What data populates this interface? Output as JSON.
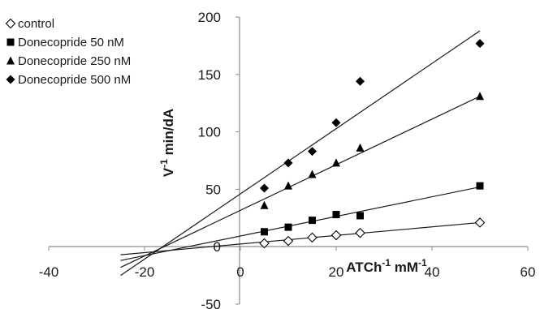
{
  "chart_data": {
    "type": "scatter",
    "title": "",
    "xlabel": {
      "base": "ATCh",
      "sup1": "-1",
      "mid": " mM",
      "sup2": "-1"
    },
    "ylabel": {
      "base": "V",
      "sup": "-1",
      "rest": " min/dA"
    },
    "xlim": [
      -40,
      60
    ],
    "ylim": [
      -50,
      200
    ],
    "x_ticks": [
      -40,
      -20,
      0,
      20,
      40,
      60
    ],
    "y_ticks": [
      -50,
      0,
      50,
      100,
      150,
      200
    ],
    "grid": false,
    "legend_position": "top-left",
    "series": [
      {
        "name": "control",
        "marker": "diamond-open",
        "x": [
          5,
          10,
          15,
          20,
          25,
          50
        ],
        "y": [
          3,
          5,
          8,
          10,
          12,
          21
        ],
        "trendline": {
          "x": [
            -25,
            50
          ],
          "y": [
            -7,
            21
          ]
        }
      },
      {
        "name": "Donecopride 50 nM",
        "marker": "square",
        "x": [
          5,
          10,
          15,
          20,
          25,
          50
        ],
        "y": [
          13,
          17,
          23,
          28,
          27,
          53
        ],
        "trendline": {
          "x": [
            -25,
            50
          ],
          "y": [
            -12,
            52
          ]
        }
      },
      {
        "name": "Donecopride 250 nM",
        "marker": "triangle",
        "x": [
          5,
          10,
          15,
          20,
          25,
          50
        ],
        "y": [
          36,
          53,
          63,
          73,
          86,
          131
        ],
        "trendline": {
          "x": [
            -25,
            50
          ],
          "y": [
            -18,
            131
          ]
        }
      },
      {
        "name": "Donecopride 500 nM",
        "marker": "diamond",
        "x": [
          5,
          10,
          15,
          20,
          25,
          50
        ],
        "y": [
          51,
          73,
          83,
          108,
          144,
          177
        ],
        "trendline": {
          "x": [
            -25,
            50
          ],
          "y": [
            -25,
            188
          ]
        }
      }
    ],
    "colors": {
      "marker": "#000000",
      "line": "#1a1a1a",
      "axis": "#8c8c8c"
    }
  }
}
